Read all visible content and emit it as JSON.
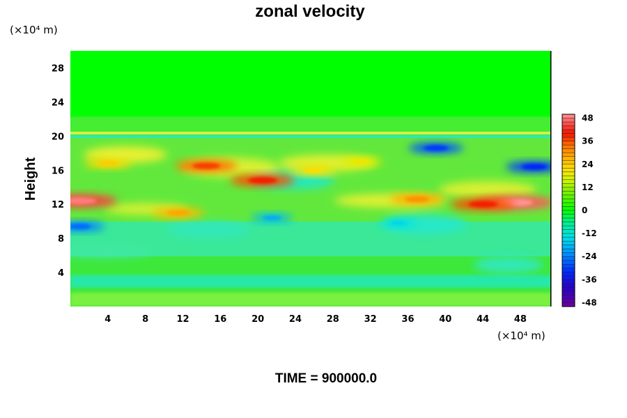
{
  "chart_data": {
    "type": "heatmap",
    "title": "zonal velocity",
    "ylabel": "Height",
    "x_unit_label": "(×10⁴ m)",
    "y_unit_label": "(×10⁴ m)",
    "x_ticks": [
      4,
      8,
      12,
      16,
      20,
      24,
      28,
      32,
      36,
      40,
      44,
      48
    ],
    "y_ticks": [
      4,
      8,
      12,
      16,
      20,
      24,
      28
    ],
    "xlim": [
      0,
      51.2
    ],
    "ylim": [
      0,
      30
    ],
    "colorbar": {
      "ticks": [
        48,
        36,
        24,
        12,
        0,
        -12,
        -24,
        -36,
        -48
      ],
      "range": [
        -50,
        50
      ]
    },
    "features": [
      {
        "x": 1.0,
        "y": 12.4,
        "value": 44
      },
      {
        "x": 47.5,
        "y": 12.2,
        "value": 46
      },
      {
        "x": 44.0,
        "y": 12.0,
        "value": 36
      },
      {
        "x": 37.0,
        "y": 12.6,
        "value": 28
      },
      {
        "x": 14.5,
        "y": 16.5,
        "value": 34
      },
      {
        "x": 20.5,
        "y": 14.8,
        "value": 36
      },
      {
        "x": 11.5,
        "y": 11.0,
        "value": 26
      },
      {
        "x": 4.0,
        "y": 16.8,
        "value": 22
      },
      {
        "x": 26.0,
        "y": 16.0,
        "value": 20
      },
      {
        "x": 31.0,
        "y": 17.0,
        "value": 18
      },
      {
        "x": 39.0,
        "y": 18.6,
        "value": -28
      },
      {
        "x": 49.5,
        "y": 16.4,
        "value": -30
      },
      {
        "x": 1.0,
        "y": 9.4,
        "value": -24
      },
      {
        "x": 21.5,
        "y": 10.4,
        "value": -18
      },
      {
        "x": 35.0,
        "y": 9.8,
        "value": -14
      }
    ],
    "footer": "TIME = 900000.0"
  }
}
